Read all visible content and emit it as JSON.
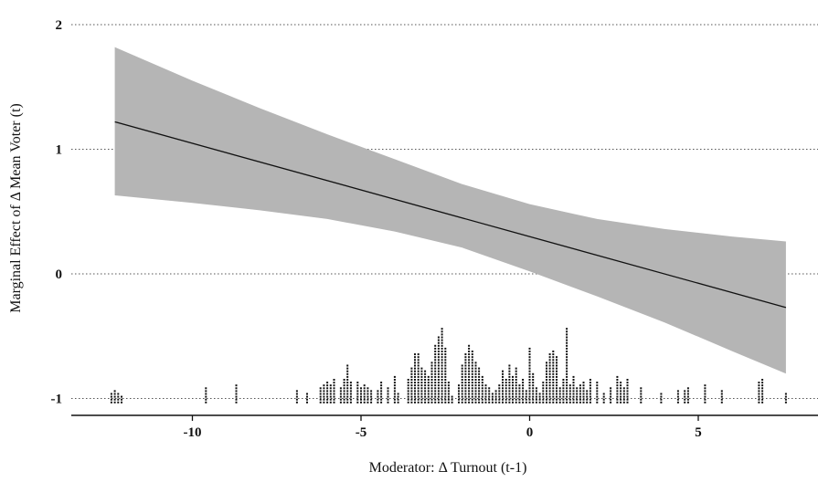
{
  "chart_data": {
    "type": "line",
    "title": "",
    "xlabel": "Moderator: Δ Turnout (t-1)",
    "ylabel": "Marginal Effect of Δ Mean Voter (t)",
    "xlim": [
      -12.8,
      8.2
    ],
    "ylim": [
      -1.15,
      2.15
    ],
    "x_ticks": [
      -10,
      -5,
      0,
      5
    ],
    "x_tick_labels": [
      "-10",
      "-5",
      "0",
      "5"
    ],
    "y_ticks": [
      -1,
      0,
      1,
      2
    ],
    "y_tick_labels": [
      "-1",
      "0",
      "1",
      "2"
    ],
    "grid": {
      "y_major": "dotted",
      "x": false
    },
    "series": [
      {
        "kind": "line",
        "x": [
          -12.3,
          7.6
        ],
        "y": [
          1.22,
          -0.27
        ]
      },
      {
        "kind": "confidence_band",
        "x": [
          -12.3,
          -10,
          -8,
          -6,
          -4,
          -2,
          0,
          2,
          4,
          6,
          7.6
        ],
        "lower": [
          0.63,
          0.57,
          0.51,
          0.44,
          0.34,
          0.21,
          0.02,
          -0.18,
          -0.39,
          -0.62,
          -0.8
        ],
        "upper": [
          1.82,
          1.55,
          1.33,
          1.12,
          0.92,
          0.72,
          0.56,
          0.44,
          0.36,
          0.3,
          0.26
        ]
      },
      {
        "kind": "rug_histogram",
        "baseline": -0.98,
        "x": [
          -12.4,
          -12.3,
          -12.2,
          -12.1,
          -9.6,
          -8.7,
          -6.9,
          -6.6,
          -6.2,
          -6.1,
          -6.0,
          -5.9,
          -5.8,
          -5.6,
          -5.5,
          -5.4,
          -5.3,
          -5.1,
          -5.0,
          -4.9,
          -4.8,
          -4.7,
          -4.5,
          -4.4,
          -4.2,
          -4.0,
          -3.9,
          -3.6,
          -3.5,
          -3.4,
          -3.3,
          -3.2,
          -3.1,
          -3.0,
          -2.9,
          -2.8,
          -2.7,
          -2.6,
          -2.5,
          -2.4,
          -2.3,
          -2.1,
          -2.0,
          -1.9,
          -1.8,
          -1.7,
          -1.6,
          -1.5,
          -1.4,
          -1.3,
          -1.2,
          -1.1,
          -1.0,
          -0.9,
          -0.8,
          -0.7,
          -0.6,
          -0.5,
          -0.4,
          -0.3,
          -0.2,
          -0.1,
          0.0,
          0.1,
          0.2,
          0.3,
          0.4,
          0.5,
          0.6,
          0.7,
          0.8,
          0.9,
          1.0,
          1.1,
          1.2,
          1.3,
          1.4,
          1.5,
          1.6,
          1.7,
          1.8,
          2.0,
          2.2,
          2.4,
          2.6,
          2.7,
          2.8,
          2.9,
          3.3,
          3.9,
          4.4,
          4.6,
          4.7,
          5.2,
          5.7,
          6.8,
          6.9,
          7.6
        ],
        "counts": [
          4,
          5,
          4,
          3,
          6,
          7,
          5,
          4,
          6,
          7,
          8,
          7,
          9,
          6,
          9,
          14,
          8,
          8,
          6,
          7,
          6,
          5,
          5,
          8,
          6,
          10,
          4,
          9,
          13,
          18,
          18,
          13,
          12,
          10,
          15,
          21,
          24,
          27,
          20,
          8,
          3,
          7,
          14,
          18,
          21,
          19,
          15,
          13,
          10,
          7,
          6,
          4,
          5,
          7,
          12,
          9,
          14,
          10,
          13,
          7,
          9,
          5,
          20,
          11,
          6,
          4,
          8,
          15,
          18,
          19,
          17,
          6,
          9,
          27,
          7,
          10,
          6,
          7,
          8,
          5,
          9,
          8,
          4,
          6,
          10,
          8,
          6,
          9,
          6,
          4,
          5,
          5,
          6,
          7,
          5,
          8,
          9,
          4
        ]
      }
    ]
  }
}
